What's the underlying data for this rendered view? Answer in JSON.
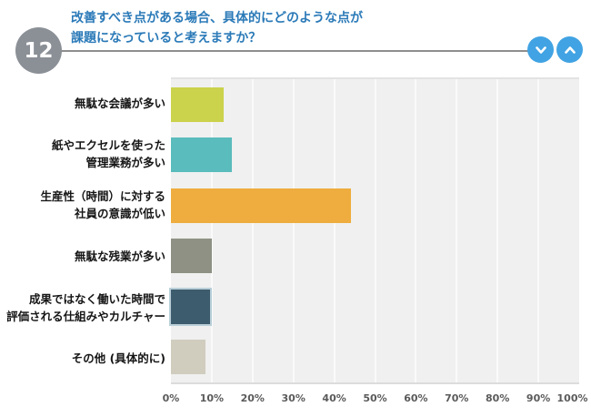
{
  "header": {
    "question_number": "12",
    "title": "改善すべき点がある場合、具体的にどのような点が\n課題になっていると考えますか？"
  },
  "colors": {
    "badge_background": "#8b9097",
    "title_text": "#2b7ab8",
    "divider_line": "#8e8e8e",
    "nav_button": "#41a3e3",
    "plot_background": "#f0f0f0",
    "gridline": "#fafafa",
    "highlight_outline": "#b9cfd9"
  },
  "chart_data": {
    "type": "bar",
    "orientation": "horizontal",
    "title": "",
    "xlabel": "",
    "ylabel": "",
    "xlim": [
      0,
      100
    ],
    "grid": true,
    "legend": false,
    "categories": [
      "無駄な会議が多い",
      "紙やエクセルを使った\n管理業務が多い",
      "生産性（時間）に対する\n社員の意識が低い",
      "無駄な残業が多い",
      "成果ではなく働いた時間で\n評価される仕組みやカルチャー",
      "その他 (具体的に)"
    ],
    "values": [
      13,
      15,
      44,
      10,
      9.5,
      8.5
    ],
    "unit": "%",
    "bar_colors": [
      "#cbd24c",
      "#5abcbc",
      "#eead3e",
      "#8e9184",
      "#3d5c6d",
      "#d0cdbf"
    ],
    "highlight_index": 4,
    "x_ticks": [
      "0%",
      "10%",
      "20%",
      "30%",
      "40%",
      "50%",
      "60%",
      "70%",
      "80%",
      "90%",
      "100%"
    ]
  }
}
